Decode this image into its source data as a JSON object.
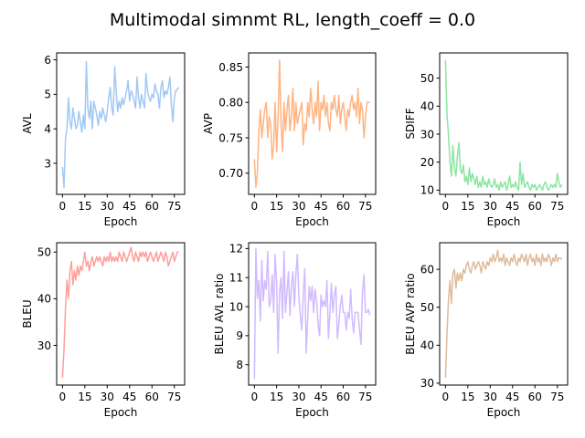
{
  "suptitle": "Multimodal simnmt RL, length_coeff = 0.0",
  "chart_data": [
    {
      "type": "line",
      "name": "avl",
      "xlabel": "Epoch",
      "ylabel": "AVL",
      "color": "#a1c9f4",
      "xlim": [
        -3.9,
        81.9
      ],
      "ylim": [
        2.1,
        6.2
      ],
      "xticks": [
        0,
        15,
        30,
        45,
        60,
        75
      ],
      "yticks": [
        3,
        4,
        5,
        6
      ],
      "x": [
        0,
        1,
        2,
        3,
        4,
        5,
        6,
        7,
        8,
        9,
        10,
        11,
        12,
        13,
        14,
        15,
        16,
        17,
        18,
        19,
        20,
        21,
        22,
        23,
        24,
        25,
        26,
        27,
        28,
        29,
        30,
        31,
        32,
        33,
        34,
        35,
        36,
        37,
        38,
        39,
        40,
        41,
        42,
        43,
        44,
        45,
        46,
        47,
        48,
        49,
        50,
        51,
        52,
        53,
        54,
        55,
        56,
        57,
        58,
        59,
        60,
        61,
        62,
        63,
        64,
        65,
        66,
        67,
        68,
        69,
        70,
        71,
        72,
        73,
        74,
        75,
        76,
        77,
        78
      ],
      "y": [
        2.9,
        2.3,
        3.7,
        4.0,
        4.9,
        4.2,
        4.0,
        4.6,
        4.3,
        4.0,
        4.1,
        4.5,
        4.2,
        3.9,
        4.4,
        4.0,
        5.95,
        4.6,
        4.3,
        4.8,
        4.0,
        4.8,
        4.6,
        4.4,
        4.1,
        4.5,
        4.3,
        4.6,
        4.4,
        4.2,
        4.5,
        4.9,
        5.2,
        4.6,
        4.4,
        5.8,
        5.1,
        4.5,
        4.8,
        4.6,
        4.9,
        4.7,
        4.9,
        5.1,
        5.4,
        4.8,
        5.1,
        5.0,
        4.8,
        4.6,
        5.5,
        4.9,
        4.6,
        5.0,
        4.8,
        4.6,
        5.6,
        5.1,
        4.9,
        4.8,
        5.0,
        4.9,
        5.3,
        5.1,
        5.0,
        4.6,
        5.2,
        5.4,
        4.9,
        5.1,
        5.0,
        5.2,
        5.5,
        4.7,
        4.2,
        4.9,
        5.1,
        5.15,
        5.2
      ]
    },
    {
      "type": "line",
      "name": "avp",
      "xlabel": "Epoch",
      "ylabel": "AVP",
      "color": "#ffb482",
      "xlim": [
        -3.9,
        81.9
      ],
      "ylim": [
        0.67,
        0.87
      ],
      "xticks": [
        0,
        15,
        30,
        45,
        60,
        75
      ],
      "yticks": [
        0.7,
        0.75,
        0.8,
        0.85
      ],
      "x": [
        0,
        1,
        2,
        3,
        4,
        5,
        6,
        7,
        8,
        9,
        10,
        11,
        12,
        13,
        14,
        15,
        16,
        17,
        18,
        19,
        20,
        21,
        22,
        23,
        24,
        25,
        26,
        27,
        28,
        29,
        30,
        31,
        32,
        33,
        34,
        35,
        36,
        37,
        38,
        39,
        40,
        41,
        42,
        43,
        44,
        45,
        46,
        47,
        48,
        49,
        50,
        51,
        52,
        53,
        54,
        55,
        56,
        57,
        58,
        59,
        60,
        61,
        62,
        63,
        64,
        65,
        66,
        67,
        68,
        69,
        70,
        71,
        72,
        73,
        74,
        75,
        76,
        77,
        78
      ],
      "y": [
        0.72,
        0.68,
        0.7,
        0.76,
        0.79,
        0.75,
        0.77,
        0.79,
        0.8,
        0.75,
        0.78,
        0.77,
        0.72,
        0.74,
        0.8,
        0.73,
        0.78,
        0.86,
        0.77,
        0.73,
        0.8,
        0.76,
        0.79,
        0.81,
        0.76,
        0.78,
        0.82,
        0.76,
        0.8,
        0.77,
        0.78,
        0.79,
        0.8,
        0.74,
        0.77,
        0.76,
        0.8,
        0.78,
        0.82,
        0.79,
        0.77,
        0.8,
        0.78,
        0.83,
        0.76,
        0.8,
        0.79,
        0.81,
        0.78,
        0.8,
        0.77,
        0.76,
        0.8,
        0.79,
        0.81,
        0.79,
        0.78,
        0.81,
        0.77,
        0.79,
        0.8,
        0.78,
        0.76,
        0.79,
        0.78,
        0.8,
        0.81,
        0.79,
        0.8,
        0.78,
        0.82,
        0.77,
        0.8,
        0.79,
        0.75,
        0.78,
        0.8,
        0.8,
        0.8
      ]
    },
    {
      "type": "line",
      "name": "sdiff",
      "xlabel": "Epoch",
      "ylabel": "SDIFF",
      "color": "#8de5a1",
      "xlim": [
        -3.9,
        81.9
      ],
      "ylim": [
        8.5,
        59
      ],
      "xticks": [
        0,
        15,
        30,
        45,
        60,
        75
      ],
      "yticks": [
        10,
        20,
        30,
        40,
        50
      ],
      "x": [
        0,
        1,
        2,
        3,
        4,
        5,
        6,
        7,
        8,
        9,
        10,
        11,
        12,
        13,
        14,
        15,
        16,
        17,
        18,
        19,
        20,
        21,
        22,
        23,
        24,
        25,
        26,
        27,
        28,
        29,
        30,
        31,
        32,
        33,
        34,
        35,
        36,
        37,
        38,
        39,
        40,
        41,
        42,
        43,
        44,
        45,
        46,
        47,
        48,
        49,
        50,
        51,
        52,
        53,
        54,
        55,
        56,
        57,
        58,
        59,
        60,
        61,
        62,
        63,
        64,
        65,
        66,
        67,
        68,
        69,
        70,
        71,
        72,
        73,
        74,
        75,
        76,
        77,
        78
      ],
      "y": [
        56.5,
        37,
        30,
        20,
        15,
        26,
        18,
        15,
        22,
        27,
        17,
        16,
        19,
        13,
        15,
        12,
        18,
        13,
        16,
        14,
        12,
        15,
        11,
        13,
        11,
        15,
        12,
        13,
        11,
        14,
        12,
        11,
        12,
        14,
        11,
        12,
        10,
        13,
        11,
        12,
        13,
        10,
        12,
        15,
        11,
        12,
        11,
        13,
        11,
        10,
        20,
        12,
        16,
        11,
        12,
        13,
        11,
        10,
        12,
        11,
        12,
        10,
        11,
        12,
        11,
        10,
        12,
        13,
        11,
        10,
        11,
        12,
        11,
        12,
        11,
        16,
        13,
        11,
        12
      ]
    },
    {
      "type": "line",
      "name": "bleu",
      "xlabel": "Epoch",
      "ylabel": "BLEU",
      "color": "#ff9f9b",
      "xlim": [
        -3.9,
        81.9
      ],
      "ylim": [
        21.5,
        52
      ],
      "xticks": [
        0,
        15,
        30,
        45,
        60,
        75
      ],
      "yticks": [
        30,
        40,
        50
      ],
      "x": [
        0,
        1,
        2,
        3,
        4,
        5,
        6,
        7,
        8,
        9,
        10,
        11,
        12,
        13,
        14,
        15,
        16,
        17,
        18,
        19,
        20,
        21,
        22,
        23,
        24,
        25,
        26,
        27,
        28,
        29,
        30,
        31,
        32,
        33,
        34,
        35,
        36,
        37,
        38,
        39,
        40,
        41,
        42,
        43,
        44,
        45,
        46,
        47,
        48,
        49,
        50,
        51,
        52,
        53,
        54,
        55,
        56,
        57,
        58,
        59,
        60,
        61,
        62,
        63,
        64,
        65,
        66,
        67,
        68,
        69,
        70,
        71,
        72,
        73,
        74,
        75,
        76,
        77,
        78
      ],
      "y": [
        23,
        29,
        38,
        44,
        40,
        46,
        48,
        43,
        46,
        44,
        47,
        45,
        47,
        46,
        48,
        50,
        47,
        48,
        46,
        48,
        49,
        47,
        48,
        49,
        48,
        49,
        48,
        47,
        49,
        48,
        49,
        48,
        50,
        48,
        49,
        48,
        49,
        48,
        50,
        49,
        48,
        50,
        49,
        48,
        49,
        50,
        51,
        49,
        48,
        50,
        49,
        48,
        50,
        49,
        50,
        49,
        50,
        48,
        49,
        50,
        49,
        48,
        49,
        50,
        48,
        49,
        50,
        49,
        48,
        50,
        49,
        47,
        48,
        49,
        50,
        48,
        49,
        50,
        50
      ]
    },
    {
      "type": "line",
      "name": "bleu-avl-ratio",
      "xlabel": "Epoch",
      "ylabel": "BLEU AVL ratio",
      "color": "#d0bbff",
      "xlim": [
        -3.9,
        81.9
      ],
      "ylim": [
        7.3,
        12.2
      ],
      "xticks": [
        0,
        15,
        30,
        45,
        60,
        75
      ],
      "yticks": [
        8,
        9,
        10,
        11,
        12
      ],
      "x": [
        0,
        1,
        2,
        3,
        4,
        5,
        6,
        7,
        8,
        9,
        10,
        11,
        12,
        13,
        14,
        15,
        16,
        17,
        18,
        19,
        20,
        21,
        22,
        23,
        24,
        25,
        26,
        27,
        28,
        29,
        30,
        31,
        32,
        33,
        34,
        35,
        36,
        37,
        38,
        39,
        40,
        41,
        42,
        43,
        44,
        45,
        46,
        47,
        48,
        49,
        50,
        51,
        52,
        53,
        54,
        55,
        56,
        57,
        58,
        59,
        60,
        61,
        62,
        63,
        64,
        65,
        66,
        67,
        68,
        69,
        70,
        71,
        72,
        73,
        74,
        75,
        76,
        77,
        78
      ],
      "y": [
        7.5,
        12.0,
        10.3,
        10.9,
        9.5,
        11.6,
        10.2,
        10.9,
        10.6,
        11.9,
        10.0,
        10.2,
        11.1,
        9.8,
        11.8,
        10.8,
        8.4,
        10.5,
        11.0,
        9.6,
        11.9,
        9.8,
        10.5,
        11.2,
        9.7,
        10.7,
        11.2,
        10.0,
        11.1,
        11.8,
        10.4,
        9.7,
        9.2,
        10.4,
        11.3,
        8.4,
        9.6,
        10.7,
        10.2,
        10.7,
        9.8,
        10.6,
        10.2,
        9.4,
        9.0,
        10.4,
        10.0,
        10.2,
        10.0,
        10.9,
        8.9,
        9.8,
        10.8,
        9.8,
        10.4,
        10.7,
        8.9,
        9.4,
        10.0,
        10.4,
        9.8,
        9.8,
        9.2,
        9.8,
        9.6,
        10.6,
        9.6,
        9.1,
        9.8,
        9.8,
        9.8,
        9.2,
        8.7,
        10.5,
        11.1,
        9.8,
        9.8,
        9.9,
        9.7
      ]
    },
    {
      "type": "line",
      "name": "bleu-avp-ratio",
      "xlabel": "Epoch",
      "ylabel": "BLEU AVP ratio",
      "color": "#debb9b",
      "xlim": [
        -3.9,
        81.9
      ],
      "ylim": [
        29.5,
        67
      ],
      "xticks": [
        0,
        15,
        30,
        45,
        60,
        75
      ],
      "yticks": [
        30,
        40,
        50,
        60
      ],
      "x": [
        0,
        1,
        2,
        3,
        4,
        5,
        6,
        7,
        8,
        9,
        10,
        11,
        12,
        13,
        14,
        15,
        16,
        17,
        18,
        19,
        20,
        21,
        22,
        23,
        24,
        25,
        26,
        27,
        28,
        29,
        30,
        31,
        32,
        33,
        34,
        35,
        36,
        37,
        38,
        39,
        40,
        41,
        42,
        43,
        44,
        45,
        46,
        47,
        48,
        49,
        50,
        51,
        52,
        53,
        54,
        55,
        56,
        57,
        58,
        59,
        60,
        61,
        62,
        63,
        64,
        65,
        66,
        67,
        68,
        69,
        70,
        71,
        72,
        73,
        74,
        75,
        76,
        77,
        78
      ],
      "y": [
        31.5,
        43,
        52,
        57,
        51,
        59,
        60,
        55,
        59,
        57,
        59,
        57,
        60,
        59,
        61,
        62,
        60,
        59,
        61,
        62,
        60,
        61,
        62,
        61,
        59,
        62,
        61,
        60,
        62,
        61,
        63,
        62,
        64,
        62,
        63,
        65,
        62,
        63,
        62,
        64,
        61,
        63,
        62,
        61,
        63,
        62,
        64,
        62,
        61,
        63,
        62,
        64,
        63,
        62,
        64,
        61,
        63,
        64,
        62,
        63,
        61,
        64,
        62,
        63,
        61,
        64,
        62,
        63,
        62,
        64,
        63,
        61,
        63,
        62,
        64,
        62,
        63,
        63,
        62.5
      ]
    }
  ]
}
